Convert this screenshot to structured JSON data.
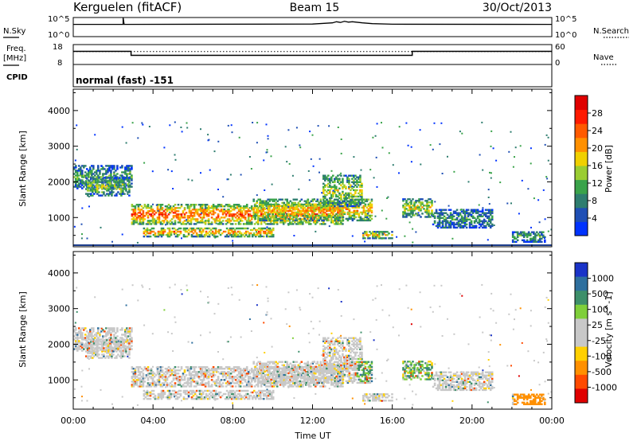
{
  "header": {
    "station": "Kerguelen (fitACF)",
    "beam": "Beam 15",
    "date": "30/Oct/2013"
  },
  "strip_labels": {
    "nsky": "N.Sky",
    "nsearch": "N.Search",
    "freq_line1": "Freq.",
    "freq_line2": "[MHz]",
    "nave": "Nave",
    "cpid": "CPID",
    "cpid_value": "normal (fast) -151",
    "noise_top": "10^5",
    "noise_bottom": "10^0",
    "freq_top": "18",
    "freq_bottom": "8",
    "nave_top": "60",
    "nave_bottom": "0"
  },
  "chart_data": [
    {
      "type": "line",
      "name": "noise",
      "x_hours": [
        0,
        2.5,
        2.5,
        2.55,
        12,
        13,
        13.2,
        13.4,
        13.6,
        13.8,
        14,
        14.5,
        15,
        16,
        24
      ],
      "values_log": [
        3.2,
        3.2,
        5,
        3.2,
        3.3,
        3.6,
        3.9,
        3.7,
        4.0,
        3.8,
        3.9,
        3.6,
        3.4,
        3.25,
        3.2
      ]
    },
    {
      "type": "line",
      "name": "frequency",
      "x_hours": [
        0,
        2.9,
        2.9,
        17,
        17,
        24
      ],
      "values": [
        14.6,
        14.6,
        12.6,
        12.6,
        14.6,
        14.6
      ],
      "nave_dotted": 14.5
    },
    {
      "type": "heatmap",
      "title": "Power",
      "xlabel": "Time UT",
      "ylabel": "Slant Range [km]",
      "xlim": [
        0,
        24
      ],
      "ylim": [
        180,
        4600
      ],
      "x_ticks": [
        "00:00",
        "04:00",
        "08:00",
        "12:00",
        "16:00",
        "20:00",
        "00:00"
      ],
      "y_ticks": [
        1000,
        2000,
        3000,
        4000
      ],
      "colorbar_label": "Power [dB]",
      "colorbar_ticks": [
        "4",
        "8",
        "12",
        "16",
        "20",
        "24",
        "28"
      ],
      "colorbar_colors": [
        "#0033ff",
        "#1f4fb5",
        "#2e7d6f",
        "#3aa34a",
        "#9acd32",
        "#f0d000",
        "#ff9000",
        "#ff5a00",
        "#ff1a00",
        "#e00000"
      ],
      "regions": [
        {
          "t0": 0,
          "t1": 2.9,
          "r0": 1800,
          "r1": 2450,
          "intensity": 0.35
        },
        {
          "t0": 0.6,
          "t1": 2.8,
          "r0": 1600,
          "r1": 2100,
          "intensity": 0.45
        },
        {
          "t0": 2.9,
          "t1": 13.5,
          "r0": 800,
          "r1": 1350,
          "intensity": 0.8
        },
        {
          "t0": 3.5,
          "t1": 10,
          "r0": 450,
          "r1": 700,
          "intensity": 0.7
        },
        {
          "t0": 9,
          "t1": 15,
          "r0": 900,
          "r1": 1500,
          "intensity": 0.65
        },
        {
          "t0": 12.5,
          "t1": 14.5,
          "r0": 1300,
          "r1": 2200,
          "intensity": 0.5
        },
        {
          "t0": 14.5,
          "t1": 16,
          "r0": 400,
          "r1": 600,
          "intensity": 0.6
        },
        {
          "t0": 16.5,
          "t1": 18,
          "r0": 1000,
          "r1": 1500,
          "intensity": 0.55
        },
        {
          "t0": 18,
          "t1": 21,
          "r0": 700,
          "r1": 1200,
          "intensity": 0.3
        },
        {
          "t0": 22,
          "t1": 23.6,
          "r0": 300,
          "r1": 600,
          "intensity": 0.35
        }
      ]
    },
    {
      "type": "heatmap",
      "title": "Velocity",
      "xlabel": "Time UT",
      "ylabel": "Slant Range [km]",
      "xlim": [
        0,
        24
      ],
      "ylim": [
        180,
        4600
      ],
      "x_ticks": [
        "00:00",
        "04:00",
        "08:00",
        "12:00",
        "16:00",
        "20:00",
        "00:00"
      ],
      "y_ticks": [
        1000,
        2000,
        3000,
        4000
      ],
      "colorbar_label": "Velocity [m s^-1]",
      "colorbar_ticks": [
        "1000",
        "500",
        "100",
        "25",
        "-25",
        "-100",
        "-500",
        "-1000"
      ],
      "colorbar_colors": [
        "#1a33c8",
        "#2e6f9e",
        "#3d8f6a",
        "#7fcf3a",
        "#c8c8c8",
        "#c8c8c8",
        "#ffd000",
        "#ff9000",
        "#ff4a00",
        "#e00000"
      ]
    }
  ]
}
